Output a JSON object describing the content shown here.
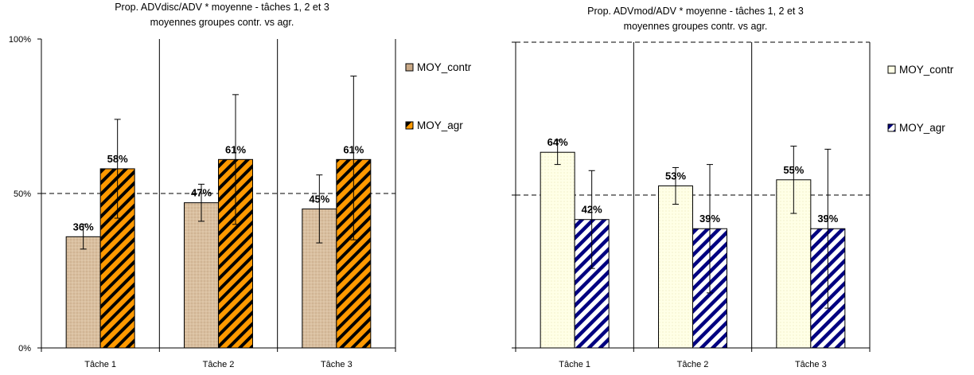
{
  "chart_data": [
    {
      "type": "bar",
      "title": "Prop. ADVdisc/ADV * moyenne - tâches 1, 2 et 3",
      "subtitle": "moyennes groupes contr. vs agr.",
      "categories": [
        "Tâche 1",
        "Tâche 2",
        "Tâche 3"
      ],
      "ylim": [
        0,
        1
      ],
      "yticks": [
        "0%",
        "50%",
        "100%"
      ],
      "reference_line": 0.5,
      "legend_position": "right",
      "series": [
        {
          "name": "MOY_contr",
          "values": [
            0.36,
            0.47,
            0.45
          ],
          "labels": [
            "36%",
            "47%",
            "45%"
          ],
          "error_low": [
            0.32,
            0.41,
            0.34
          ],
          "error_high": [
            0.4,
            0.53,
            0.56
          ],
          "color": "#d9bf9f",
          "pattern": "dotted"
        },
        {
          "name": "MOY_agr",
          "values": [
            0.58,
            0.61,
            0.61
          ],
          "labels": [
            "58%",
            "61%",
            "61%"
          ],
          "error_low": [
            0.42,
            0.4,
            0.35
          ],
          "error_high": [
            0.74,
            0.82,
            0.88
          ],
          "color": "#ff9900",
          "pattern": "diagonal-stripes-black"
        }
      ]
    },
    {
      "type": "bar",
      "title": "Prop. ADVmod/ADV * moyenne - tâches 1, 2 et 3",
      "subtitle": "moyennes groupes contr. vs agr.",
      "categories": [
        "Tâche 1",
        "Tâche 2",
        "Tâche 3"
      ],
      "ylim": [
        0,
        1
      ],
      "yticks": [
        "",
        "",
        ""
      ],
      "reference_line": 0.5,
      "legend_position": "right",
      "series": [
        {
          "name": "MOY_contr",
          "values": [
            0.64,
            0.53,
            0.55
          ],
          "labels": [
            "64%",
            "53%",
            "55%"
          ],
          "error_low": [
            0.6,
            0.47,
            0.44
          ],
          "error_high": [
            0.68,
            0.59,
            0.66
          ],
          "color": "#ffffe0",
          "pattern": "dotted"
        },
        {
          "name": "MOY_agr",
          "values": [
            0.42,
            0.39,
            0.39
          ],
          "labels": [
            "42%",
            "39%",
            "39%"
          ],
          "error_low": [
            0.26,
            0.18,
            0.13
          ],
          "error_high": [
            0.58,
            0.6,
            0.65
          ],
          "color": "#ffffff",
          "pattern": "diagonal-stripes-navy"
        }
      ]
    }
  ]
}
